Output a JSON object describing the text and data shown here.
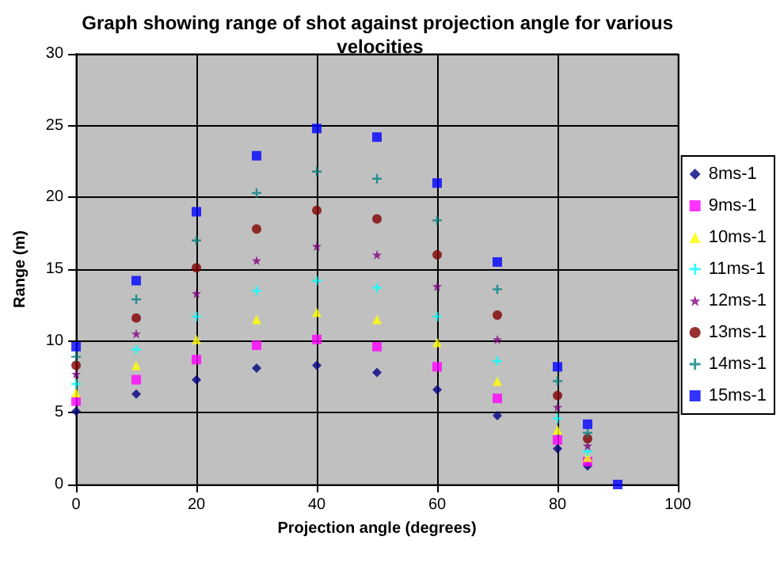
{
  "chart_data": {
    "type": "scatter",
    "title": "Graph showing range of shot against projection angle for various velocities",
    "xlabel": "Projection angle (degrees)",
    "ylabel": "Range (m)",
    "x": [
      0,
      10,
      20,
      30,
      40,
      50,
      60,
      70,
      80,
      85,
      90
    ],
    "xlim": [
      0,
      100
    ],
    "xticks": [
      0,
      20,
      40,
      60,
      80,
      100
    ],
    "ylim": [
      0,
      30
    ],
    "yticks": [
      0,
      5,
      10,
      15,
      20,
      25,
      30
    ],
    "grid": true,
    "legend": "right",
    "series": [
      {
        "name": "8ms-1",
        "color": "#000080",
        "marker": "diamond",
        "values": [
          5.1,
          6.3,
          7.3,
          8.1,
          8.3,
          7.8,
          6.6,
          4.8,
          2.5,
          1.3,
          null
        ]
      },
      {
        "name": "9ms-1",
        "color": "#ff00ff",
        "marker": "square",
        "values": [
          5.8,
          7.3,
          8.7,
          9.7,
          10.1,
          9.6,
          8.2,
          6.0,
          3.1,
          1.6,
          null
        ]
      },
      {
        "name": "10ms-1",
        "color": "#ffff00",
        "marker": "triangle",
        "values": [
          6.4,
          8.3,
          10.1,
          11.5,
          12.0,
          11.5,
          9.9,
          7.2,
          3.8,
          1.9,
          null
        ]
      },
      {
        "name": "11ms-1",
        "color": "#00ffff",
        "marker": "cross",
        "values": [
          7.0,
          9.4,
          11.7,
          13.5,
          14.2,
          13.7,
          11.7,
          8.6,
          4.6,
          2.3,
          null
        ]
      },
      {
        "name": "12ms-1",
        "color": "#800080",
        "marker": "star",
        "values": [
          7.7,
          10.5,
          13.3,
          15.6,
          16.6,
          16.0,
          13.8,
          10.1,
          5.4,
          2.7,
          null
        ]
      },
      {
        "name": "13ms-1",
        "color": "#800000",
        "marker": "circle",
        "values": [
          8.3,
          11.6,
          15.1,
          17.8,
          19.1,
          18.5,
          16.0,
          11.8,
          6.2,
          3.2,
          null
        ]
      },
      {
        "name": "14ms-1",
        "color": "#008080",
        "marker": "cross",
        "values": [
          8.9,
          12.9,
          17.0,
          20.3,
          21.8,
          21.3,
          18.4,
          13.6,
          7.2,
          3.6,
          null
        ]
      },
      {
        "name": "15ms-1",
        "color": "#0000ff",
        "marker": "square",
        "values": [
          9.6,
          14.2,
          19.0,
          22.9,
          24.8,
          24.2,
          21.0,
          15.5,
          8.2,
          4.2,
          0
        ]
      }
    ]
  }
}
